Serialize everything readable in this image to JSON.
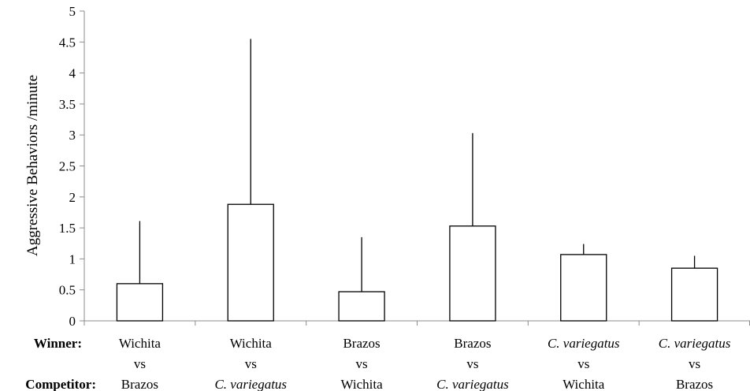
{
  "chart_data": {
    "type": "bar",
    "title": "",
    "xlabel": "",
    "ylabel": "Aggressive Behaviors /minute",
    "ylim": [
      0,
      5
    ],
    "yticks": [
      "0",
      "0.5",
      "1",
      "1.5",
      "2",
      "2.5",
      "3",
      "3.5",
      "4",
      "4.5",
      "5"
    ],
    "grid": false,
    "legend": "none",
    "row_labels": {
      "winner": "Winner:",
      "vs": "",
      "competitor": "Competitor:"
    },
    "categories": [
      {
        "winner": "Wichita",
        "vs": "vs",
        "competitor": "Brazos",
        "winner_italic": false,
        "competitor_italic": false
      },
      {
        "winner": "Wichita",
        "vs": "vs",
        "competitor": "C. variegatus",
        "winner_italic": false,
        "competitor_italic": true
      },
      {
        "winner": "Brazos",
        "vs": "vs",
        "competitor": "Wichita",
        "winner_italic": false,
        "competitor_italic": false
      },
      {
        "winner": "Brazos",
        "vs": "vs",
        "competitor": "C. variegatus",
        "winner_italic": false,
        "competitor_italic": true
      },
      {
        "winner": "C. variegatus",
        "vs": "vs",
        "competitor": "Wichita",
        "winner_italic": true,
        "competitor_italic": false
      },
      {
        "winner": "C. variegatus",
        "vs": "vs",
        "competitor": "Brazos",
        "winner_italic": true,
        "competitor_italic": false
      }
    ],
    "values": [
      0.6,
      1.88,
      0.47,
      1.53,
      1.07,
      0.85
    ],
    "error_upper": [
      1.61,
      4.55,
      1.35,
      3.03,
      1.24,
      1.05
    ],
    "colors": {
      "bar_fill": "#ffffff",
      "bar_stroke": "#000000",
      "axis": "#8c8c8c"
    }
  }
}
